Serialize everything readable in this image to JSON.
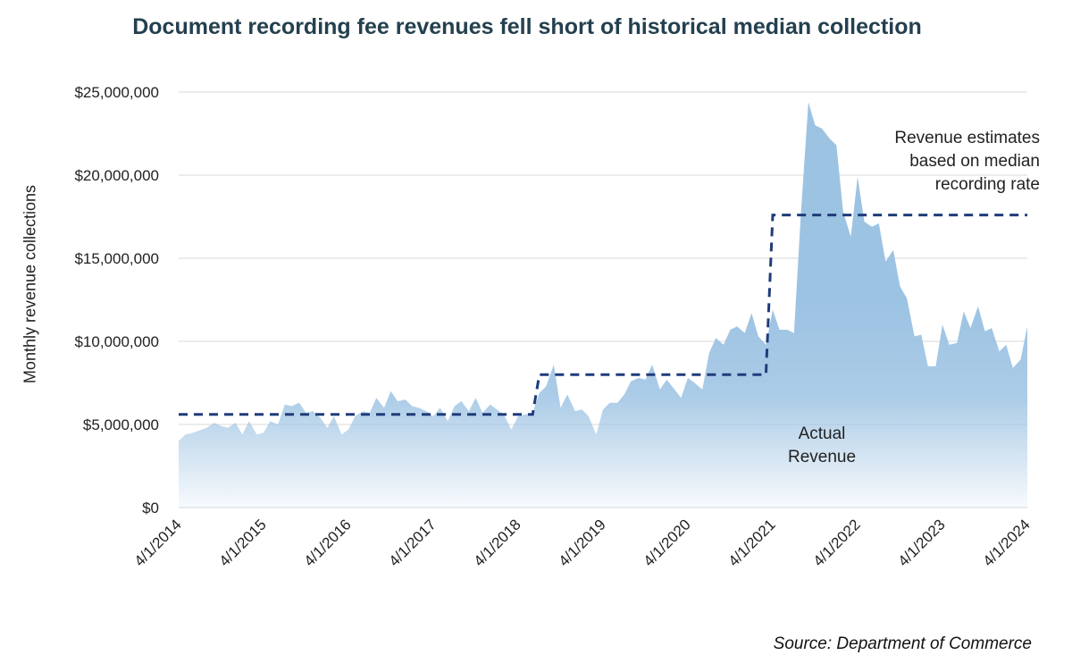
{
  "chart_data": {
    "type": "area",
    "title": "Document recording fee revenues fell short of historical median collection",
    "xlabel": "",
    "ylabel": "Monthly revenue collections",
    "ylim": [
      0,
      25000000
    ],
    "yticks": [
      0,
      5000000,
      10000000,
      15000000,
      20000000,
      25000000
    ],
    "ytick_labels": [
      "$0",
      "$5,000,000",
      "$10,000,000",
      "$15,000,000",
      "$20,000,000",
      "$25,000,000"
    ],
    "xlim": [
      2014.25,
      2024.25
    ],
    "xtick_labels": [
      "4/1/2014",
      "4/1/2015",
      "4/1/2016",
      "4/1/2017",
      "4/1/2018",
      "4/1/2019",
      "4/1/2020",
      "4/1/2021",
      "4/1/2022",
      "4/1/2023",
      "4/1/2024"
    ],
    "series": [
      {
        "name": "Actual Revenue",
        "color": "#9dc3e3",
        "x": [
          2014.25,
          2014.33,
          2014.42,
          2014.58,
          2014.67,
          2014.75,
          2014.83,
          2014.92,
          2015.0,
          2015.08,
          2015.17,
          2015.25,
          2015.33,
          2015.42,
          2015.5,
          2015.58,
          2015.67,
          2015.75,
          2015.83,
          2015.92,
          2016.0,
          2016.08,
          2016.17,
          2016.25,
          2016.33,
          2016.42,
          2016.5,
          2016.58,
          2016.67,
          2016.75,
          2016.83,
          2016.92,
          2017.0,
          2017.08,
          2017.17,
          2017.25,
          2017.33,
          2017.42,
          2017.5,
          2017.58,
          2017.67,
          2017.75,
          2017.83,
          2017.92,
          2018.0,
          2018.08,
          2018.17,
          2018.25,
          2018.33,
          2018.42,
          2018.5,
          2018.58,
          2018.67,
          2018.75,
          2018.83,
          2018.92,
          2019.0,
          2019.08,
          2019.17,
          2019.25,
          2019.33,
          2019.42,
          2019.5,
          2019.58,
          2019.67,
          2019.75,
          2019.83,
          2019.92,
          2020.0,
          2020.08,
          2020.17,
          2020.25,
          2020.33,
          2020.42,
          2020.5,
          2020.58,
          2020.67,
          2020.75,
          2020.83,
          2020.92,
          2021.0,
          2021.08,
          2021.17,
          2021.25,
          2021.33,
          2021.42,
          2021.5,
          2021.58,
          2021.67,
          2021.75,
          2021.83,
          2021.92,
          2022.0,
          2022.08,
          2022.17,
          2022.25,
          2022.33,
          2022.42,
          2022.5,
          2022.58,
          2022.67,
          2022.75,
          2022.83,
          2022.92,
          2023.0,
          2023.08,
          2023.17,
          2023.25,
          2023.33,
          2023.42,
          2023.5,
          2023.58,
          2023.67,
          2023.75,
          2023.83,
          2023.92,
          2024.0,
          2024.08,
          2024.17,
          2024.25
        ],
        "values": [
          4000000,
          4400000,
          4500000,
          4800000,
          5100000,
          4900000,
          4800000,
          5100000,
          4400000,
          5200000,
          4400000,
          4500000,
          5200000,
          5000000,
          6200000,
          6100000,
          6300000,
          5700000,
          5800000,
          5400000,
          4800000,
          5500000,
          4400000,
          4700000,
          5500000,
          5800000,
          5700000,
          6600000,
          6000000,
          7000000,
          6400000,
          6500000,
          6100000,
          6000000,
          5800000,
          5500000,
          6000000,
          5200000,
          6100000,
          6400000,
          5800000,
          6600000,
          5700000,
          6200000,
          5900000,
          5600000,
          4700000,
          5500000,
          5600000,
          5700000,
          6900000,
          7300000,
          8600000,
          6000000,
          6800000,
          5800000,
          5900000,
          5500000,
          4400000,
          5900000,
          6300000,
          6300000,
          6800000,
          7600000,
          7800000,
          7700000,
          8600000,
          7100000,
          7700000,
          7200000,
          6600000,
          7800000,
          7500000,
          7100000,
          9300000,
          10200000,
          9800000,
          10700000,
          10900000,
          10500000,
          11700000,
          10300000,
          9800000,
          11900000,
          10700000,
          10700000,
          10500000,
          17500000,
          24400000,
          23000000,
          22800000,
          22200000,
          21800000,
          17800000,
          16300000,
          19900000,
          17200000,
          16900000,
          17100000,
          14800000,
          15500000,
          13300000,
          12600000,
          10300000,
          10400000,
          8500000,
          8500000,
          11000000,
          9800000,
          9900000,
          11800000,
          10800000,
          12100000,
          10600000,
          10800000,
          9400000,
          9800000,
          8400000,
          8900000,
          10900000
        ]
      },
      {
        "name": "Revenue estimates based on median recording rate",
        "color": "#1f3c7a",
        "style": "dashed",
        "x": [
          2014.25,
          2018.42,
          2018.5,
          2021.17,
          2021.25,
          2024.25
        ],
        "values": [
          5600000,
          5600000,
          8000000,
          8000000,
          17600000,
          17600000
        ]
      }
    ],
    "annotations": [
      {
        "lines": [
          "Revenue estimates",
          "based on median",
          "recording rate"
        ],
        "target": "Revenue estimates based on median recording rate"
      },
      {
        "lines": [
          "Actual",
          "Revenue"
        ],
        "target": "Actual Revenue"
      }
    ],
    "source": "Source: Department of Commerce",
    "grid": true,
    "legend": "none"
  }
}
